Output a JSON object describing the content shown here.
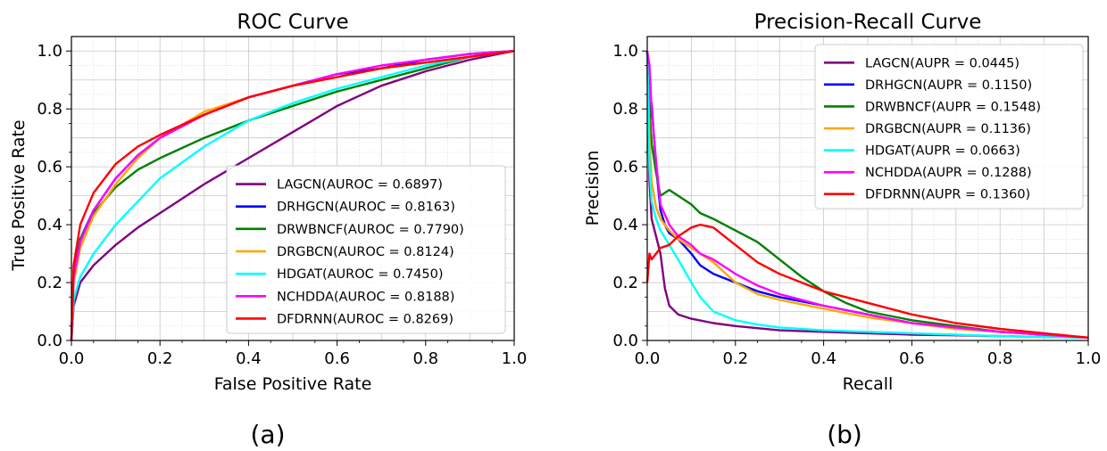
{
  "chart_data": [
    {
      "type": "line",
      "title": "ROC Curve",
      "xlabel": "False Positive Rate",
      "ylabel": "True Positive Rate",
      "xlim": [
        0,
        1
      ],
      "ylim": [
        0,
        1.05
      ],
      "xticks": [
        "0.0",
        "0.2",
        "0.4",
        "0.6",
        "0.8",
        "1.0"
      ],
      "yticks": [
        "0.0",
        "0.2",
        "0.4",
        "0.6",
        "0.8",
        "1.0"
      ],
      "grid": true,
      "legend_position": "bottom-right",
      "caption": "(a)",
      "series": [
        {
          "name": "LAGCN(AUROC = 0.6897)",
          "color": "#800080",
          "x": [
            0,
            0.005,
            0.02,
            0.05,
            0.1,
            0.15,
            0.2,
            0.3,
            0.4,
            0.5,
            0.6,
            0.7,
            0.8,
            0.9,
            1.0
          ],
          "y": [
            0,
            0.12,
            0.2,
            0.26,
            0.33,
            0.39,
            0.44,
            0.54,
            0.63,
            0.72,
            0.81,
            0.88,
            0.93,
            0.97,
            1.0
          ]
        },
        {
          "name": "DRHGCN(AUROC = 0.8163)",
          "color": "#0000ff",
          "x": [
            0,
            0.005,
            0.02,
            0.05,
            0.1,
            0.15,
            0.2,
            0.3,
            0.4,
            0.5,
            0.6,
            0.7,
            0.8,
            0.9,
            1.0
          ],
          "y": [
            0,
            0.22,
            0.35,
            0.45,
            0.56,
            0.64,
            0.7,
            0.78,
            0.84,
            0.88,
            0.92,
            0.94,
            0.97,
            0.99,
            1.0
          ]
        },
        {
          "name": "DRWBNCF(AUROC = 0.7790)",
          "color": "#008000",
          "x": [
            0,
            0.005,
            0.02,
            0.05,
            0.1,
            0.15,
            0.2,
            0.3,
            0.4,
            0.5,
            0.6,
            0.7,
            0.8,
            0.9,
            1.0
          ],
          "y": [
            0,
            0.24,
            0.35,
            0.44,
            0.53,
            0.59,
            0.63,
            0.7,
            0.76,
            0.81,
            0.86,
            0.9,
            0.94,
            0.98,
            1.0
          ]
        },
        {
          "name": "DRGBCN(AUROC = 0.8124)",
          "color": "#ffa500",
          "x": [
            0,
            0.005,
            0.02,
            0.05,
            0.1,
            0.15,
            0.2,
            0.3,
            0.4,
            0.5,
            0.6,
            0.7,
            0.8,
            0.9,
            1.0
          ],
          "y": [
            0,
            0.2,
            0.32,
            0.43,
            0.54,
            0.63,
            0.7,
            0.79,
            0.84,
            0.88,
            0.91,
            0.94,
            0.96,
            0.98,
            1.0
          ]
        },
        {
          "name": "HDGAT(AUROC = 0.7450)",
          "color": "#00ffff",
          "x": [
            0,
            0.005,
            0.02,
            0.05,
            0.1,
            0.15,
            0.2,
            0.3,
            0.4,
            0.5,
            0.6,
            0.7,
            0.8,
            0.9,
            1.0
          ],
          "y": [
            0,
            0.14,
            0.22,
            0.3,
            0.4,
            0.48,
            0.56,
            0.67,
            0.76,
            0.82,
            0.87,
            0.91,
            0.95,
            0.98,
            1.0
          ]
        },
        {
          "name": "NCHDDA(AUROC = 0.8188)",
          "color": "#ff00ff",
          "x": [
            0,
            0.005,
            0.02,
            0.05,
            0.1,
            0.15,
            0.2,
            0.3,
            0.4,
            0.5,
            0.6,
            0.7,
            0.8,
            0.9,
            1.0
          ],
          "y": [
            0,
            0.22,
            0.34,
            0.45,
            0.56,
            0.64,
            0.7,
            0.78,
            0.84,
            0.88,
            0.92,
            0.95,
            0.97,
            0.99,
            1.0
          ]
        },
        {
          "name": "DFDRNN(AUROC = 0.8269)",
          "color": "#ff0000",
          "x": [
            0,
            0.005,
            0.02,
            0.05,
            0.1,
            0.15,
            0.2,
            0.3,
            0.4,
            0.5,
            0.6,
            0.7,
            0.8,
            0.9,
            1.0
          ],
          "y": [
            0,
            0.26,
            0.4,
            0.51,
            0.61,
            0.67,
            0.71,
            0.78,
            0.84,
            0.88,
            0.91,
            0.94,
            0.96,
            0.98,
            1.0
          ]
        }
      ]
    },
    {
      "type": "line",
      "title": "Precision-Recall Curve",
      "xlabel": "Recall",
      "ylabel": "Precision",
      "xlim": [
        0,
        1
      ],
      "ylim": [
        0,
        1.05
      ],
      "xticks": [
        "0.0",
        "0.2",
        "0.4",
        "0.6",
        "0.8",
        "1.0"
      ],
      "yticks": [
        "0.0",
        "0.2",
        "0.4",
        "0.6",
        "0.8",
        "1.0"
      ],
      "grid": true,
      "legend_position": "top-right",
      "caption": "(b)",
      "series": [
        {
          "name": "LAGCN(AUPR = 0.0445)",
          "color": "#800080",
          "x": [
            0.0,
            0.005,
            0.01,
            0.02,
            0.03,
            0.04,
            0.05,
            0.07,
            0.1,
            0.15,
            0.2,
            0.3,
            0.4,
            0.5,
            0.6,
            0.7,
            0.8,
            0.9,
            1.0
          ],
          "y": [
            1.0,
            0.55,
            0.42,
            0.36,
            0.3,
            0.18,
            0.12,
            0.09,
            0.075,
            0.06,
            0.05,
            0.035,
            0.03,
            0.025,
            0.02,
            0.018,
            0.015,
            0.012,
            0.01
          ]
        },
        {
          "name": "DRHGCN(AUPR = 0.1150)",
          "color": "#0000ff",
          "x": [
            0.0,
            0.005,
            0.01,
            0.02,
            0.03,
            0.04,
            0.05,
            0.07,
            0.1,
            0.12,
            0.15,
            0.2,
            0.25,
            0.3,
            0.4,
            0.5,
            0.6,
            0.7,
            0.8,
            0.9,
            1.0
          ],
          "y": [
            1.0,
            0.75,
            0.82,
            0.6,
            0.45,
            0.4,
            0.37,
            0.35,
            0.3,
            0.26,
            0.23,
            0.2,
            0.17,
            0.15,
            0.12,
            0.09,
            0.06,
            0.045,
            0.03,
            0.02,
            0.01
          ]
        },
        {
          "name": "DRWBNCF(AUPR = 0.1548)",
          "color": "#008000",
          "x": [
            0.0,
            0.005,
            0.01,
            0.02,
            0.03,
            0.05,
            0.07,
            0.1,
            0.12,
            0.15,
            0.2,
            0.25,
            0.3,
            0.35,
            0.4,
            0.45,
            0.5,
            0.6,
            0.7,
            0.8,
            0.9,
            1.0
          ],
          "y": [
            1.0,
            0.8,
            0.68,
            0.58,
            0.5,
            0.52,
            0.5,
            0.47,
            0.44,
            0.42,
            0.38,
            0.34,
            0.28,
            0.22,
            0.17,
            0.13,
            0.1,
            0.07,
            0.05,
            0.03,
            0.02,
            0.01
          ]
        },
        {
          "name": "DRGBCN(AUPR = 0.1136)",
          "color": "#ffa500",
          "x": [
            0.0,
            0.005,
            0.01,
            0.02,
            0.03,
            0.05,
            0.07,
            0.1,
            0.15,
            0.2,
            0.25,
            0.3,
            0.4,
            0.5,
            0.6,
            0.7,
            0.8,
            0.9,
            1.0
          ],
          "y": [
            1.0,
            0.7,
            0.55,
            0.46,
            0.42,
            0.38,
            0.35,
            0.32,
            0.27,
            0.2,
            0.16,
            0.14,
            0.11,
            0.08,
            0.06,
            0.04,
            0.03,
            0.02,
            0.01
          ]
        },
        {
          "name": "HDGAT(AUPR = 0.0663)",
          "color": "#00ffff",
          "x": [
            0.0,
            0.005,
            0.01,
            0.02,
            0.03,
            0.05,
            0.07,
            0.1,
            0.12,
            0.15,
            0.2,
            0.25,
            0.3,
            0.4,
            0.5,
            0.6,
            0.7,
            0.8,
            0.9,
            1.0
          ],
          "y": [
            1.0,
            0.6,
            0.48,
            0.42,
            0.38,
            0.33,
            0.28,
            0.2,
            0.15,
            0.1,
            0.07,
            0.055,
            0.045,
            0.035,
            0.03,
            0.025,
            0.02,
            0.015,
            0.012,
            0.01
          ]
        },
        {
          "name": "NCHDDA(AUPR = 0.1288)",
          "color": "#ff00ff",
          "x": [
            0.0,
            0.005,
            0.01,
            0.02,
            0.03,
            0.05,
            0.07,
            0.1,
            0.12,
            0.15,
            0.2,
            0.25,
            0.3,
            0.4,
            0.5,
            0.6,
            0.7,
            0.8,
            0.9,
            1.0
          ],
          "y": [
            1.0,
            0.95,
            0.8,
            0.62,
            0.47,
            0.4,
            0.36,
            0.33,
            0.3,
            0.28,
            0.23,
            0.19,
            0.16,
            0.12,
            0.09,
            0.06,
            0.045,
            0.03,
            0.02,
            0.01
          ]
        },
        {
          "name": "DFDRNN(AUPR = 0.1360)",
          "color": "#ff0000",
          "x": [
            0.0,
            0.005,
            0.01,
            0.02,
            0.03,
            0.05,
            0.07,
            0.1,
            0.12,
            0.15,
            0.2,
            0.25,
            0.3,
            0.35,
            0.4,
            0.5,
            0.6,
            0.7,
            0.8,
            0.9,
            1.0
          ],
          "y": [
            0.2,
            0.3,
            0.28,
            0.3,
            0.32,
            0.33,
            0.36,
            0.39,
            0.4,
            0.39,
            0.33,
            0.27,
            0.23,
            0.2,
            0.17,
            0.13,
            0.09,
            0.06,
            0.04,
            0.025,
            0.01
          ]
        }
      ]
    }
  ]
}
